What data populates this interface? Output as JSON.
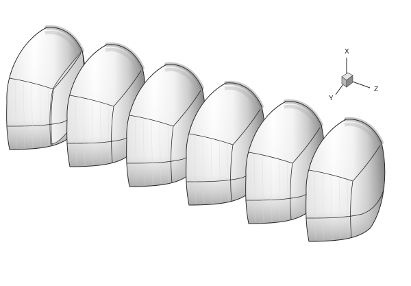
{
  "triad": {
    "x_label": "X",
    "y_label": "Y",
    "z_label": "Z"
  },
  "shells": {
    "count": 6,
    "fill_color": "#ffffff",
    "shade_color": "#6e6e6e",
    "edge_color": "#2a2a2a"
  },
  "background_color": "#ffffff"
}
